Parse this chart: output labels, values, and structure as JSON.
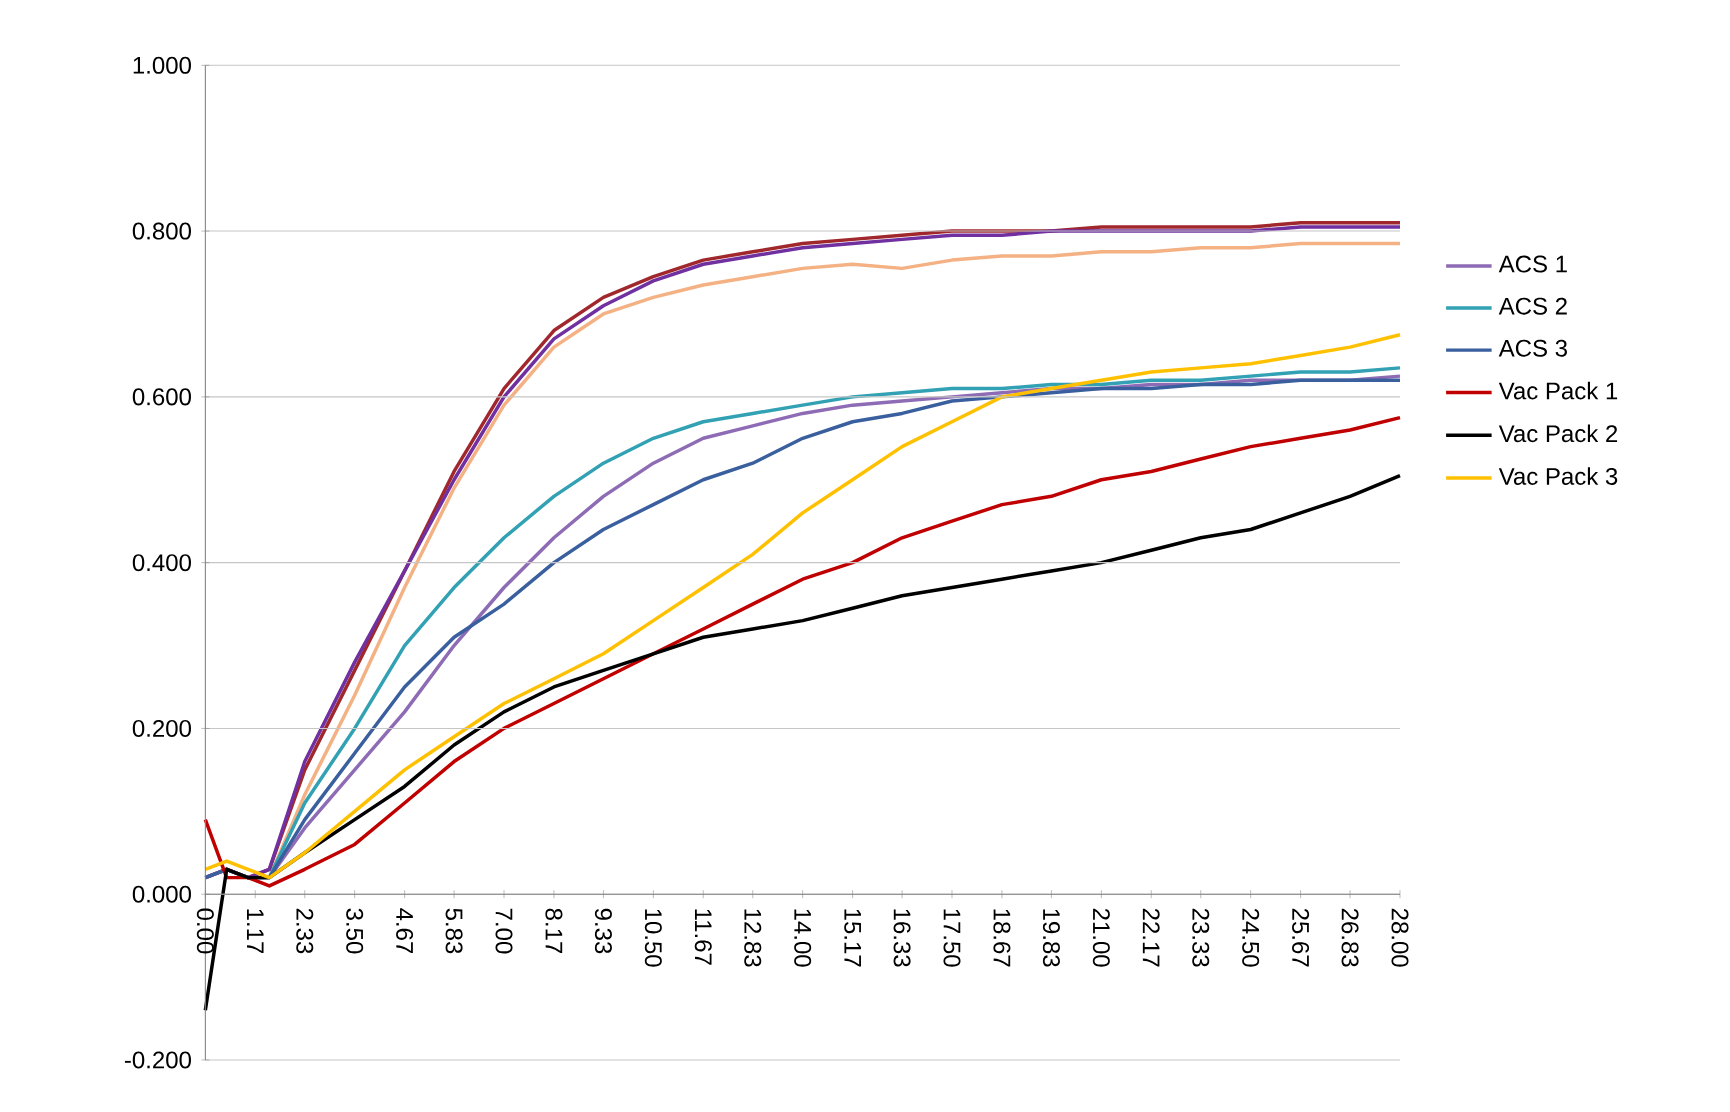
{
  "chart_data": {
    "type": "line",
    "x": [
      0,
      0.5,
      1,
      1.5,
      2.33,
      3.5,
      4.67,
      5.83,
      7,
      8.17,
      9.33,
      10.5,
      11.67,
      12.83,
      14,
      15.17,
      16.33,
      17.5,
      18.67,
      19.83,
      21,
      22.17,
      23.33,
      24.5,
      25.67,
      26.83,
      28
    ],
    "series": [
      {
        "color": "#f4b183",
        "values": [
          0.02,
          0.03,
          0.02,
          0.02,
          0.12,
          0.24,
          0.37,
          0.49,
          0.59,
          0.66,
          0.7,
          0.72,
          0.735,
          0.745,
          0.755,
          0.76,
          0.755,
          0.765,
          0.77,
          0.77,
          0.775,
          0.775,
          0.78,
          0.78,
          0.785,
          0.785,
          0.785
        ]
      },
      {
        "color": "#a0282d",
        "values": [
          0.02,
          0.03,
          0.02,
          0.03,
          0.15,
          0.27,
          0.39,
          0.51,
          0.61,
          0.68,
          0.72,
          0.745,
          0.765,
          0.775,
          0.785,
          0.79,
          0.795,
          0.8,
          0.8,
          0.8,
          0.805,
          0.805,
          0.805,
          0.805,
          0.81,
          0.81,
          0.81
        ]
      },
      {
        "color": "#7030a0",
        "values": [
          0.02,
          0.03,
          0.02,
          0.03,
          0.16,
          0.28,
          0.39,
          0.5,
          0.6,
          0.67,
          0.71,
          0.74,
          0.76,
          0.77,
          0.78,
          0.785,
          0.79,
          0.795,
          0.795,
          0.8,
          0.8,
          0.8,
          0.8,
          0.8,
          0.805,
          0.805,
          0.805
        ]
      },
      {
        "name": "ACS 1",
        "color": "#8e6bb5",
        "values": [
          0.02,
          0.03,
          0.02,
          0.02,
          0.08,
          0.15,
          0.22,
          0.3,
          0.37,
          0.43,
          0.48,
          0.52,
          0.55,
          0.565,
          0.58,
          0.59,
          0.595,
          0.6,
          0.605,
          0.61,
          0.61,
          0.615,
          0.615,
          0.62,
          0.62,
          0.62,
          0.625
        ]
      },
      {
        "name": "ACS 2",
        "color": "#31a1b3",
        "values": [
          null,
          null,
          0.02,
          0.02,
          0.11,
          0.2,
          0.3,
          0.37,
          0.43,
          0.48,
          0.52,
          0.55,
          0.57,
          0.58,
          0.59,
          0.6,
          0.605,
          0.61,
          0.61,
          0.615,
          0.615,
          0.62,
          0.62,
          0.625,
          0.63,
          0.63,
          0.635
        ]
      },
      {
        "name": "ACS 3",
        "color": "#3a5f9e",
        "values": [
          0.02,
          0.03,
          0.02,
          0.02,
          0.09,
          0.17,
          0.25,
          0.31,
          0.35,
          0.4,
          0.44,
          0.47,
          0.5,
          0.52,
          0.55,
          0.57,
          0.58,
          0.595,
          0.6,
          0.605,
          0.61,
          0.61,
          0.615,
          0.615,
          0.62,
          0.62,
          0.62
        ]
      },
      {
        "name": "Vac Pack 1",
        "color": "#c00000",
        "values": [
          0.09,
          0.02,
          0.02,
          0.01,
          0.03,
          0.06,
          0.11,
          0.16,
          0.2,
          0.23,
          0.26,
          0.29,
          0.32,
          0.35,
          0.38,
          0.4,
          0.43,
          0.45,
          0.47,
          0.48,
          0.5,
          0.51,
          0.525,
          0.54,
          0.55,
          0.56,
          0.575
        ]
      },
      {
        "name": "Vac Pack 2",
        "color": "#000000",
        "values": [
          -0.14,
          0.03,
          0.02,
          0.02,
          0.05,
          0.09,
          0.13,
          0.18,
          0.22,
          0.25,
          0.27,
          0.29,
          0.31,
          0.32,
          0.33,
          0.345,
          0.36,
          0.37,
          0.38,
          0.39,
          0.4,
          0.415,
          0.43,
          0.44,
          0.46,
          0.48,
          0.505
        ]
      },
      {
        "name": "Vac Pack 3",
        "color": "#ffc000",
        "values": [
          0.03,
          0.04,
          0.03,
          0.02,
          0.05,
          0.1,
          0.15,
          0.19,
          0.23,
          0.26,
          0.29,
          0.33,
          0.37,
          0.41,
          0.46,
          0.5,
          0.54,
          0.57,
          0.6,
          0.61,
          0.62,
          0.63,
          0.635,
          0.64,
          0.65,
          0.66,
          0.675
        ]
      }
    ],
    "xlim": [
      0,
      28
    ],
    "xticks": [
      {
        "value": 0,
        "label": "0.00"
      },
      {
        "value": 1.17,
        "label": "1.17"
      },
      {
        "value": 2.33,
        "label": "2.33"
      },
      {
        "value": 3.5,
        "label": "3.50"
      },
      {
        "value": 4.67,
        "label": "4.67"
      },
      {
        "value": 5.83,
        "label": "5.83"
      },
      {
        "value": 7,
        "label": "7.00"
      },
      {
        "value": 8.17,
        "label": "8.17"
      },
      {
        "value": 9.33,
        "label": "9.33"
      },
      {
        "value": 10.5,
        "label": "10.50"
      },
      {
        "value": 11.67,
        "label": "11.67"
      },
      {
        "value": 12.83,
        "label": "12.83"
      },
      {
        "value": 14,
        "label": "14.00"
      },
      {
        "value": 15.17,
        "label": "15.17"
      },
      {
        "value": 16.33,
        "label": "16.33"
      },
      {
        "value": 17.5,
        "label": "17.50"
      },
      {
        "value": 18.67,
        "label": "18.67"
      },
      {
        "value": 19.83,
        "label": "19.83"
      },
      {
        "value": 21,
        "label": "21.00"
      },
      {
        "value": 22.17,
        "label": "22.17"
      },
      {
        "value": 23.33,
        "label": "23.33"
      },
      {
        "value": 24.5,
        "label": "24.50"
      },
      {
        "value": 25.67,
        "label": "25.67"
      },
      {
        "value": 26.83,
        "label": "26.83"
      },
      {
        "value": 28,
        "label": "28.00"
      }
    ],
    "ylim": [
      -0.2,
      1
    ],
    "yticks": [
      {
        "value": -0.2,
        "label": "-0.200"
      },
      {
        "value": 0,
        "label": "0.000"
      },
      {
        "value": 0.2,
        "label": "0.200"
      },
      {
        "value": 0.4,
        "label": "0.400"
      },
      {
        "value": 0.6,
        "label": "0.600"
      },
      {
        "value": 0.8,
        "label": "0.800"
      },
      {
        "value": 1,
        "label": "1.000"
      }
    ],
    "grid": "y",
    "legend": "right",
    "marker": "none",
    "line_style": "solid"
  }
}
